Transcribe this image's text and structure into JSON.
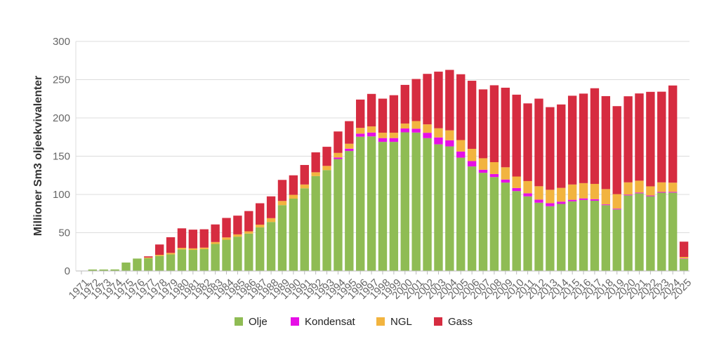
{
  "chart_data": {
    "type": "bar",
    "stacked": true,
    "ylabel": "Millioner Sm3 oljeekvivalenter",
    "xlabel": "",
    "ylim": [
      0,
      300
    ],
    "yticks": [
      0,
      50,
      100,
      150,
      200,
      250,
      300
    ],
    "grid": true,
    "legend_position": "bottom",
    "categories": [
      "1971",
      "1972",
      "1973",
      "1974",
      "1975",
      "1976",
      "1977",
      "1978",
      "1979",
      "1980",
      "1981",
      "1982",
      "1983",
      "1984",
      "1985",
      "1986",
      "1987",
      "1988",
      "1989",
      "1990",
      "1991",
      "1992",
      "1993",
      "1994",
      "1995",
      "1996",
      "1997",
      "1998",
      "1999",
      "2000",
      "2001",
      "2002",
      "2003",
      "2004",
      "2005",
      "2006",
      "2007",
      "2008",
      "2009",
      "2010",
      "2011",
      "2012",
      "2013",
      "2014",
      "2015",
      "2016",
      "2017",
      "2018",
      "2019",
      "2020",
      "2021",
      "2022",
      "2023",
      "2024",
      "2025"
    ],
    "series": [
      {
        "name": "Olje",
        "color": "#8fbc54",
        "values": [
          0.4,
          1.9,
          1.9,
          2.0,
          11.0,
          16.2,
          16.6,
          19.6,
          21.6,
          28.2,
          27.5,
          28.5,
          35.3,
          40.8,
          44.8,
          48.8,
          57.0,
          64.0,
          86.0,
          94.5,
          108.0,
          124.0,
          131.8,
          146.3,
          156.8,
          175.5,
          175.9,
          168.7,
          168.7,
          181.2,
          180.9,
          173.6,
          165.5,
          162.8,
          148.1,
          136.6,
          128.3,
          122.7,
          115.5,
          104.4,
          97.5,
          89.2,
          84.6,
          87.6,
          91.0,
          92.8,
          91.8,
          86.0,
          80.4,
          98.8,
          101.5,
          97.6,
          102.3,
          102.4,
          15.8
        ]
      },
      {
        "name": "Kondensat",
        "color": "#e60fe6",
        "values": [
          0,
          0,
          0,
          0,
          0,
          0,
          0,
          0,
          0,
          0,
          0,
          0,
          0,
          0,
          0,
          0,
          0,
          0,
          0,
          0,
          0,
          0,
          0,
          2.0,
          3.0,
          4.0,
          5.0,
          5.0,
          5.0,
          5.0,
          5.0,
          7.0,
          9.0,
          8.0,
          8.0,
          7.0,
          4.0,
          4.0,
          4.0,
          4.0,
          4.0,
          4.0,
          4.0,
          3.0,
          2.0,
          2.0,
          2.0,
          1.0,
          1.0,
          1.0,
          1.0,
          1.0,
          1.0,
          1.0,
          0.5
        ]
      },
      {
        "name": "NGL",
        "color": "#f2b43f",
        "values": [
          0,
          0,
          0,
          0,
          0,
          0,
          1.0,
          1.5,
          2.0,
          2.0,
          2.0,
          2.0,
          2.5,
          3.0,
          3.0,
          3.0,
          3.5,
          5.0,
          5.5,
          5.0,
          5.0,
          5.0,
          5.5,
          6.0,
          6.5,
          7.5,
          8.0,
          7.0,
          7.0,
          6.5,
          10.0,
          11.0,
          12.0,
          13.0,
          15.0,
          16.0,
          15.0,
          15.5,
          16.0,
          15.0,
          16.0,
          17.5,
          17.5,
          18.0,
          20.0,
          20.0,
          20.0,
          20.0,
          19.0,
          16.0,
          15.5,
          12.0,
          12.5,
          12.0,
          2.0
        ]
      },
      {
        "name": "Gass",
        "color": "#d62c40",
        "values": [
          0,
          0,
          0,
          0,
          0,
          0,
          1.5,
          13.5,
          20.5,
          25.5,
          24.5,
          24.0,
          23.0,
          25.5,
          24.5,
          26.5,
          28.0,
          28.5,
          27.5,
          25.5,
          25.5,
          26.0,
          25.0,
          28.0,
          29.5,
          37.0,
          42.5,
          44.5,
          49.0,
          50.5,
          55.0,
          66.0,
          74.0,
          79.0,
          86.0,
          89.0,
          90.0,
          100.5,
          104.0,
          107.0,
          101.5,
          114.5,
          108.0,
          109.0,
          116.0,
          117.0,
          125.0,
          121.5,
          115.0,
          112.5,
          114.0,
          123.5,
          118.5,
          127.0,
          20.0
        ]
      }
    ]
  }
}
